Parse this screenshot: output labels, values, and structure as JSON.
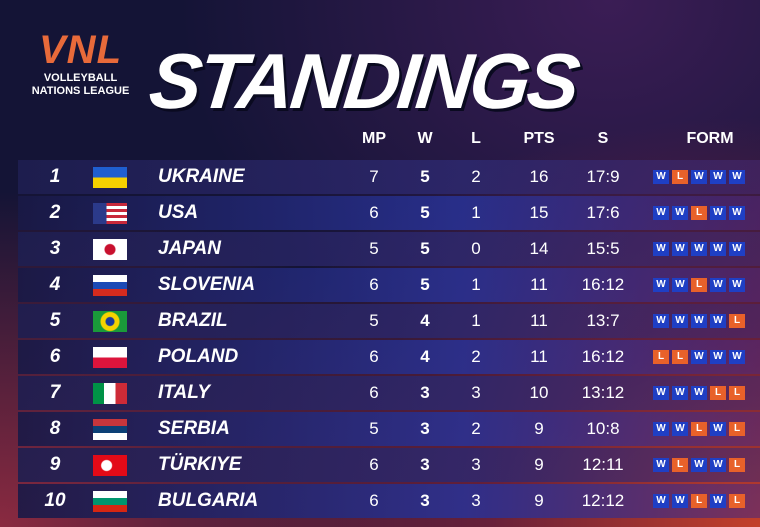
{
  "logo": {
    "mark": "VNL",
    "line1": "VOLLEYBALL",
    "line2": "NATIONS LEAGUE"
  },
  "title": "STANDINGS",
  "table": {
    "headers": [
      "MP",
      "W",
      "L",
      "PTS",
      "S",
      "FORM"
    ],
    "rows": [
      {
        "rank": 1,
        "team": "UKRAINE",
        "mp": 7,
        "w": 5,
        "l": 2,
        "pts": 16,
        "s": "17:9",
        "form": [
          "W",
          "L",
          "W",
          "W",
          "W"
        ]
      },
      {
        "rank": 2,
        "team": "USA",
        "mp": 6,
        "w": 5,
        "l": 1,
        "pts": 15,
        "s": "17:6",
        "form": [
          "W",
          "W",
          "L",
          "W",
          "W"
        ]
      },
      {
        "rank": 3,
        "team": "JAPAN",
        "mp": 5,
        "w": 5,
        "l": 0,
        "pts": 14,
        "s": "15:5",
        "form": [
          "W",
          "W",
          "W",
          "W",
          "W"
        ]
      },
      {
        "rank": 4,
        "team": "SLOVENIA",
        "mp": 6,
        "w": 5,
        "l": 1,
        "pts": 11,
        "s": "16:12",
        "form": [
          "W",
          "W",
          "L",
          "W",
          "W"
        ]
      },
      {
        "rank": 5,
        "team": "BRAZIL",
        "mp": 5,
        "w": 4,
        "l": 1,
        "pts": 11,
        "s": "13:7",
        "form": [
          "W",
          "W",
          "W",
          "W",
          "L"
        ]
      },
      {
        "rank": 6,
        "team": "POLAND",
        "mp": 6,
        "w": 4,
        "l": 2,
        "pts": 11,
        "s": "16:12",
        "form": [
          "L",
          "L",
          "W",
          "W",
          "W"
        ]
      },
      {
        "rank": 7,
        "team": "ITALY",
        "mp": 6,
        "w": 3,
        "l": 3,
        "pts": 10,
        "s": "13:12",
        "form": [
          "W",
          "W",
          "W",
          "L",
          "L"
        ]
      },
      {
        "rank": 8,
        "team": "SERBIA",
        "mp": 5,
        "w": 3,
        "l": 2,
        "pts": 9,
        "s": "10:8",
        "form": [
          "W",
          "W",
          "L",
          "W",
          "L"
        ]
      },
      {
        "rank": 9,
        "team": "TÜRKIYE",
        "mp": 6,
        "w": 3,
        "l": 3,
        "pts": 9,
        "s": "12:11",
        "form": [
          "W",
          "L",
          "W",
          "W",
          "L"
        ]
      },
      {
        "rank": 10,
        "team": "BULGARIA",
        "mp": 6,
        "w": 3,
        "l": 3,
        "pts": 9,
        "s": "12:12",
        "form": [
          "W",
          "W",
          "L",
          "W",
          "L"
        ]
      }
    ]
  }
}
